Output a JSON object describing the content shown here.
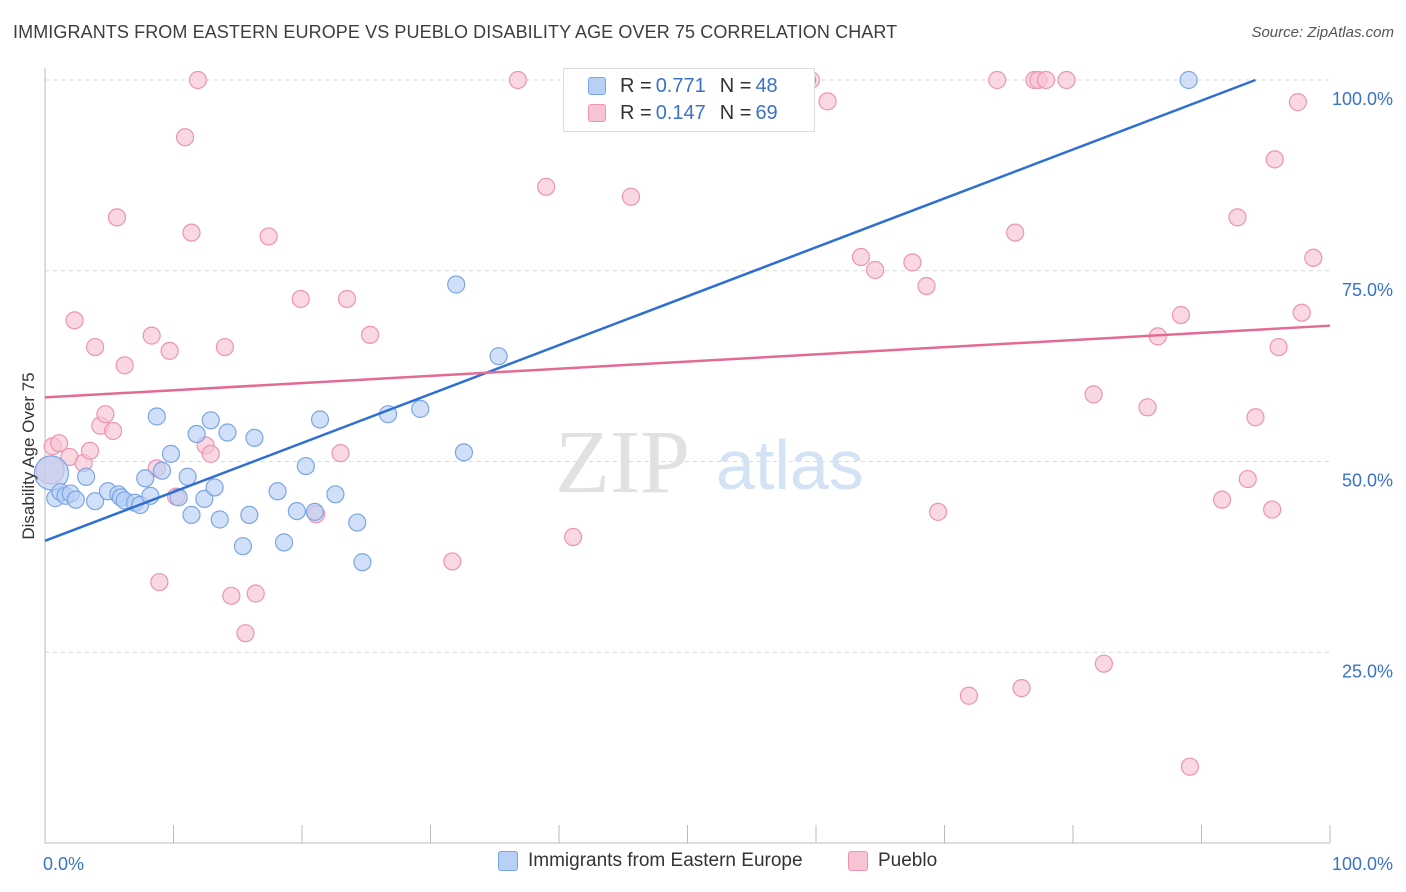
{
  "header": {
    "title": "IMMIGRANTS FROM EASTERN EUROPE VS PUEBLO DISABILITY AGE OVER 75 CORRELATION CHART",
    "source": "Source: ZipAtlas.com"
  },
  "watermark": {
    "part1": "ZIP",
    "part2": "atlas"
  },
  "legend_top": {
    "r_label": "R =",
    "n_label": "N =",
    "rows": [
      {
        "r": "0.771",
        "n": "48"
      },
      {
        "r": "0.147",
        "n": "69"
      }
    ]
  },
  "colors": {
    "blue_fill": "#b8d0f5",
    "blue_stroke": "#7aa6e3",
    "blue_line": "#2f6fd0",
    "pink_fill": "#f8c3d3",
    "pink_stroke": "#ee93b1",
    "pink_line": "#e36a92",
    "tick_label": "#3a72c8",
    "grid": "#d9d9d9"
  },
  "chart_data": {
    "type": "scatter",
    "xlabel": "",
    "ylabel": "Disability Age Over 75",
    "xlim": [
      0,
      100
    ],
    "ylim": [
      0,
      100
    ],
    "x_ticks": [
      {
        "value": 0,
        "label": "0.0%"
      },
      {
        "value": 100,
        "label": "100.0%"
      }
    ],
    "y_ticks": [
      {
        "value": 25,
        "label": "25.0%"
      },
      {
        "value": 50,
        "label": "50.0%"
      },
      {
        "value": 75,
        "label": "75.0%"
      },
      {
        "value": 100,
        "label": "100.0%"
      }
    ],
    "grid": "horizontal dashed",
    "legend_position": "bottom-center",
    "series": [
      {
        "name": "Immigrants from Eastern Europe",
        "color": "blue",
        "r": 0.771,
        "n": 48,
        "trend": {
          "x": [
            0,
            94.2
          ],
          "y": [
            39.6,
            100
          ]
        },
        "points": [
          [
            0.5,
            48.5
          ],
          [
            0.8,
            45.2
          ],
          [
            1.2,
            46.0
          ],
          [
            1.6,
            45.5
          ],
          [
            2.0,
            45.8
          ],
          [
            2.4,
            45.0
          ],
          [
            3.2,
            48.0
          ],
          [
            3.9,
            44.8
          ],
          [
            4.9,
            46.1
          ],
          [
            5.7,
            45.7
          ],
          [
            5.9,
            45.3
          ],
          [
            6.2,
            44.9
          ],
          [
            7.0,
            44.6
          ],
          [
            7.4,
            44.3
          ],
          [
            7.8,
            47.8
          ],
          [
            8.2,
            45.5
          ],
          [
            8.7,
            55.9
          ],
          [
            9.1,
            48.8
          ],
          [
            9.8,
            51.0
          ],
          [
            10.4,
            45.3
          ],
          [
            11.1,
            48.0
          ],
          [
            11.4,
            43.0
          ],
          [
            11.8,
            53.6
          ],
          [
            12.4,
            45.1
          ],
          [
            12.9,
            55.4
          ],
          [
            13.2,
            46.6
          ],
          [
            13.6,
            42.4
          ],
          [
            14.2,
            53.8
          ],
          [
            15.4,
            38.9
          ],
          [
            15.9,
            43.0
          ],
          [
            16.3,
            53.1
          ],
          [
            18.1,
            46.1
          ],
          [
            18.6,
            39.4
          ],
          [
            19.6,
            43.5
          ],
          [
            20.3,
            49.4
          ],
          [
            21.0,
            43.4
          ],
          [
            21.4,
            55.5
          ],
          [
            22.6,
            45.7
          ],
          [
            24.3,
            42.0
          ],
          [
            24.7,
            36.8
          ],
          [
            26.7,
            56.2
          ],
          [
            29.2,
            56.9
          ],
          [
            32.0,
            73.2
          ],
          [
            32.6,
            51.2
          ],
          [
            35.3,
            63.8
          ],
          [
            47.4,
            100.0
          ],
          [
            59.3,
            100.0
          ],
          [
            89.0,
            100.0
          ]
        ]
      },
      {
        "name": "Pueblo",
        "color": "pink",
        "r": 0.147,
        "n": 69,
        "trend": {
          "x": [
            0,
            100
          ],
          "y": [
            58.4,
            67.8
          ]
        },
        "points": [
          [
            0.4,
            48.9
          ],
          [
            0.6,
            52.0
          ],
          [
            1.1,
            52.4
          ],
          [
            1.9,
            50.6
          ],
          [
            2.3,
            68.5
          ],
          [
            3.0,
            49.8
          ],
          [
            3.5,
            51.4
          ],
          [
            3.9,
            65.0
          ],
          [
            4.3,
            54.7
          ],
          [
            4.7,
            56.2
          ],
          [
            5.3,
            54.0
          ],
          [
            5.6,
            82.0
          ],
          [
            6.2,
            62.6
          ],
          [
            8.3,
            66.5
          ],
          [
            8.7,
            49.1
          ],
          [
            8.9,
            34.2
          ],
          [
            9.7,
            64.5
          ],
          [
            10.2,
            45.4
          ],
          [
            10.9,
            92.5
          ],
          [
            11.4,
            80.0
          ],
          [
            11.9,
            100.0
          ],
          [
            12.5,
            52.1
          ],
          [
            12.9,
            51.0
          ],
          [
            14.0,
            65.0
          ],
          [
            14.5,
            32.4
          ],
          [
            15.6,
            27.5
          ],
          [
            16.4,
            32.7
          ],
          [
            17.4,
            79.5
          ],
          [
            19.9,
            71.3
          ],
          [
            21.1,
            43.1
          ],
          [
            23.0,
            51.1
          ],
          [
            23.5,
            71.3
          ],
          [
            25.3,
            66.6
          ],
          [
            31.7,
            36.9
          ],
          [
            36.8,
            100.0
          ],
          [
            39.0,
            86.0
          ],
          [
            41.1,
            40.1
          ],
          [
            45.6,
            84.7
          ],
          [
            59.6,
            100.0
          ],
          [
            60.9,
            97.2
          ],
          [
            63.5,
            76.8
          ],
          [
            64.6,
            75.1
          ],
          [
            67.5,
            76.1
          ],
          [
            68.6,
            73.0
          ],
          [
            69.5,
            43.4
          ],
          [
            71.9,
            19.3
          ],
          [
            74.1,
            100.0
          ],
          [
            75.5,
            80.0
          ],
          [
            76.0,
            20.3
          ],
          [
            77.0,
            100.0
          ],
          [
            77.3,
            100.0
          ],
          [
            77.9,
            100.0
          ],
          [
            79.5,
            100.0
          ],
          [
            81.6,
            58.8
          ],
          [
            82.4,
            23.5
          ],
          [
            85.8,
            57.1
          ],
          [
            86.6,
            66.4
          ],
          [
            88.4,
            69.2
          ],
          [
            89.1,
            10.0
          ],
          [
            91.6,
            45.0
          ],
          [
            92.8,
            82.0
          ],
          [
            93.6,
            47.7
          ],
          [
            94.2,
            55.8
          ],
          [
            95.5,
            43.7
          ],
          [
            95.7,
            89.6
          ],
          [
            96.0,
            65.0
          ],
          [
            97.5,
            97.1
          ],
          [
            97.8,
            69.5
          ],
          [
            98.7,
            76.7
          ]
        ]
      }
    ]
  }
}
